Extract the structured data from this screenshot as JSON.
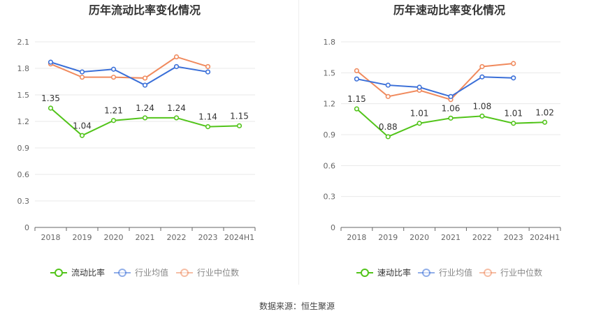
{
  "charts": [
    {
      "title": "历年流动比率变化情况",
      "type": "line",
      "categories": [
        "2018",
        "2019",
        "2020",
        "2021",
        "2022",
        "2023",
        "2024H1"
      ],
      "y_ticks": [
        "0",
        "0.3",
        "0.6",
        "0.9",
        "1.2",
        "1.5",
        "1.8",
        "2.1"
      ],
      "ylim": [
        0,
        2.1
      ],
      "series": [
        {
          "name": "流动比率",
          "color": "#52c41a",
          "values": [
            1.35,
            1.04,
            1.21,
            1.24,
            1.24,
            1.14,
            1.15
          ],
          "labels": [
            "1.35",
            "1.04",
            "1.21",
            "1.24",
            "1.24",
            "1.14",
            "1.15"
          ]
        },
        {
          "name": "行业均值",
          "color": "#3a6fd8",
          "values": [
            1.87,
            1.76,
            1.79,
            1.61,
            1.82,
            1.76,
            null
          ]
        },
        {
          "name": "行业中位数",
          "color": "#f08a5d",
          "values": [
            1.85,
            1.7,
            1.7,
            1.69,
            1.93,
            1.82,
            null
          ]
        }
      ]
    },
    {
      "title": "历年速动比率变化情况",
      "type": "line",
      "categories": [
        "2018",
        "2019",
        "2020",
        "2021",
        "2022",
        "2023",
        "2024H1"
      ],
      "y_ticks": [
        "0",
        "0.3",
        "0.6",
        "0.9",
        "1.2",
        "1.5",
        "1.8"
      ],
      "ylim": [
        0,
        1.8
      ],
      "series": [
        {
          "name": "速动比率",
          "color": "#52c41a",
          "values": [
            1.15,
            0.88,
            1.01,
            1.06,
            1.08,
            1.01,
            1.02
          ],
          "labels": [
            "1.15",
            "0.88",
            "1.01",
            "1.06",
            "1.08",
            "1.01",
            "1.02"
          ]
        },
        {
          "name": "行业均值",
          "color": "#3a6fd8",
          "values": [
            1.44,
            1.38,
            1.36,
            1.27,
            1.46,
            1.45,
            null
          ]
        },
        {
          "name": "行业中位数",
          "color": "#f08a5d",
          "values": [
            1.52,
            1.27,
            1.33,
            1.24,
            1.56,
            1.59,
            null
          ]
        }
      ]
    }
  ],
  "source_label": "数据来源：恒生聚源"
}
